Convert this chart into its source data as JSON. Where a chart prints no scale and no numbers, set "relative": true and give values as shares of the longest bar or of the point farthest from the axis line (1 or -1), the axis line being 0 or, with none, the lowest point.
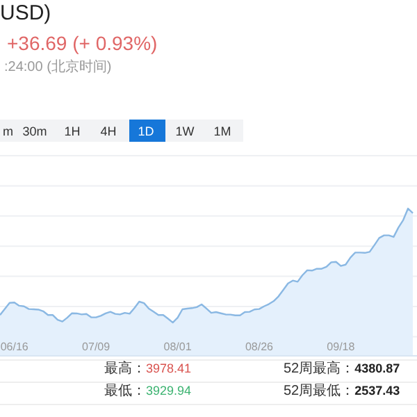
{
  "chart_data": {
    "type": "area",
    "title": "USD)",
    "subtitle": "+36.69 (+ 0.93%)",
    "annotations": [
      ":24:00 (北京时间)",
      "m",
      "30m",
      "1H",
      "4H",
      "1D",
      "1W",
      "1M",
      "最高：3978.41",
      "最低：3929.94",
      "52周最高：4380.87",
      "52周最低：2537.43"
    ],
    "relative": true,
    "grid": "y",
    "categories": [
      null,
      null,
      null,
      "06/16",
      null,
      null,
      null,
      null,
      null,
      null,
      null,
      null,
      null,
      null,
      null,
      null,
      null,
      null,
      null,
      null,
      "07/09",
      null,
      null,
      null,
      null,
      null,
      null,
      null,
      null,
      null,
      null,
      null,
      null,
      null,
      null,
      null,
      null,
      "08/01",
      null,
      null,
      null,
      null,
      null,
      null,
      null,
      null,
      null,
      null,
      null,
      null,
      null,
      null,
      null,
      null,
      "08/26",
      null,
      null,
      null,
      null,
      null,
      null,
      null,
      null,
      null,
      null,
      null,
      null,
      null,
      null,
      null,
      null,
      "09/18",
      null,
      null,
      null,
      null,
      null,
      null,
      null,
      null,
      null,
      null,
      null,
      null,
      null,
      null,
      null
    ],
    "series": [
      {
        "color": "#8ab8e3",
        "values": [
          0.277,
          0.318,
          0.36,
          0.362,
          0.34,
          0.336,
          0.318,
          0.316,
          0.314,
          0.303,
          0.277,
          0.277,
          0.245,
          0.233,
          0.259,
          0.289,
          0.288,
          0.281,
          0.284,
          0.262,
          0.261,
          0.272,
          0.288,
          0.299,
          0.285,
          0.281,
          0.292,
          0.286,
          0.324,
          0.368,
          0.358,
          0.321,
          0.299,
          0.277,
          0.277,
          0.252,
          0.226,
          0.259,
          0.316,
          0.321,
          0.324,
          0.331,
          0.349,
          0.321,
          0.292,
          0.297,
          0.289,
          0.281,
          0.28,
          0.275,
          0.275,
          0.297,
          0.299,
          0.315,
          0.318,
          0.336,
          0.351,
          0.371,
          0.403,
          0.447,
          0.492,
          0.511,
          0.503,
          0.547,
          0.581,
          0.579,
          0.591,
          0.591,
          0.604,
          0.635,
          0.638,
          0.61,
          0.619,
          0.667,
          0.701,
          0.701,
          0.699,
          0.706,
          0.752,
          0.8,
          0.818,
          0.818,
          0.807,
          0.871,
          0.922,
          1.0,
          0.969
        ]
      }
    ]
  }
}
